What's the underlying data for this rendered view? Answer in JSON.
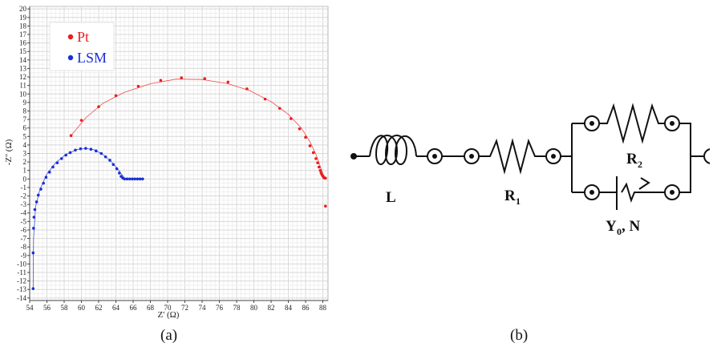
{
  "chart_data": {
    "type": "scatter",
    "title": "",
    "xlabel": "Z' (Ω)",
    "ylabel": "-Z'' (Ω)",
    "xlim": [
      54,
      88.6
    ],
    "ylim": [
      -14.3,
      20.3
    ],
    "x_ticks": [
      "54",
      "56",
      "58",
      "60",
      "62",
      "64",
      "66",
      "68",
      "70",
      "72",
      "74",
      "76",
      "78",
      "80",
      "82",
      "84",
      "86",
      "88"
    ],
    "x_tick_values": [
      54,
      56,
      58,
      60,
      62,
      64,
      66,
      68,
      70,
      72,
      74,
      76,
      78,
      80,
      82,
      84,
      86,
      88
    ],
    "y_tick_values": [
      -14,
      -13,
      -12,
      -11,
      -10,
      -9,
      -8,
      -7,
      -6,
      -5,
      -4,
      -3,
      -2,
      -1,
      0,
      1,
      2,
      3,
      4,
      5,
      6,
      7,
      8,
      9,
      10,
      11,
      12,
      13,
      14,
      15,
      16,
      17,
      18,
      19,
      20
    ],
    "grid": true,
    "legend": "top-left",
    "series": [
      {
        "name": "Pt",
        "color": "#ee1c1c",
        "points": [
          [
            58.8,
            5.1
          ],
          [
            60,
            6.9
          ],
          [
            62,
            8.5
          ],
          [
            64,
            9.8
          ],
          [
            66.6,
            10.9
          ],
          [
            69.2,
            11.6
          ],
          [
            71.6,
            11.9
          ],
          [
            74.3,
            11.8
          ],
          [
            77,
            11.4
          ],
          [
            79.2,
            10.6
          ],
          [
            81.3,
            9.4
          ],
          [
            83,
            8.3
          ],
          [
            84.3,
            7.1
          ],
          [
            85.3,
            5.9
          ],
          [
            86,
            4.9
          ],
          [
            86.5,
            3.9
          ],
          [
            86.9,
            3.1
          ],
          [
            87.2,
            2.4
          ],
          [
            87.4,
            1.9
          ],
          [
            87.55,
            1.4
          ],
          [
            87.7,
            1.0
          ],
          [
            87.8,
            0.7
          ],
          [
            87.9,
            0.5
          ],
          [
            88.0,
            0.35
          ],
          [
            88.05,
            0.25
          ],
          [
            88.1,
            0.18
          ],
          [
            88.15,
            0.14
          ],
          [
            88.2,
            0.12
          ],
          [
            88.25,
            0.1
          ],
          [
            88.3,
            0.1
          ],
          [
            88.3,
            -3.2
          ]
        ],
        "fit": [
          [
            58.8,
            5.1
          ],
          [
            60.5,
            7.2
          ],
          [
            62.5,
            8.9
          ],
          [
            65,
            10.2
          ],
          [
            68,
            11.2
          ],
          [
            71,
            11.75
          ],
          [
            74,
            11.7
          ],
          [
            77,
            11.2
          ],
          [
            79.5,
            10.4
          ],
          [
            82,
            9.1
          ],
          [
            84,
            7.6
          ],
          [
            85.5,
            6.0
          ],
          [
            86.5,
            4.4
          ],
          [
            87.2,
            2.9
          ],
          [
            87.7,
            1.5
          ],
          [
            88,
            0.6
          ],
          [
            88.2,
            0.15
          ],
          [
            88.3,
            0.05
          ]
        ]
      },
      {
        "name": "LSM",
        "color": "#1c2fd6",
        "points": [
          [
            54.4,
            -12.9
          ],
          [
            54.4,
            -8.7
          ],
          [
            54.45,
            -5.8
          ],
          [
            54.5,
            -4.5
          ],
          [
            54.6,
            -3.6
          ],
          [
            54.8,
            -2.7
          ],
          [
            55.0,
            -1.9
          ],
          [
            55.3,
            -1.2
          ],
          [
            55.6,
            -0.5
          ],
          [
            55.9,
            0.2
          ],
          [
            56.3,
            0.8
          ],
          [
            56.7,
            1.4
          ],
          [
            57.2,
            1.9
          ],
          [
            57.7,
            2.4
          ],
          [
            58.2,
            2.8
          ],
          [
            58.7,
            3.1
          ],
          [
            59.3,
            3.4
          ],
          [
            59.9,
            3.55
          ],
          [
            60.5,
            3.6
          ],
          [
            61.1,
            3.5
          ],
          [
            61.7,
            3.3
          ],
          [
            62.3,
            3.0
          ],
          [
            62.8,
            2.6
          ],
          [
            63.3,
            2.2
          ],
          [
            63.7,
            1.7
          ],
          [
            64.1,
            1.2
          ],
          [
            64.4,
            0.7
          ],
          [
            64.6,
            0.3
          ],
          [
            64.8,
            0.1
          ],
          [
            65.0,
            0.0
          ],
          [
            65.3,
            0.0
          ],
          [
            65.6,
            0.0
          ],
          [
            65.9,
            0.0
          ],
          [
            66.2,
            0.0
          ],
          [
            66.5,
            0.0
          ],
          [
            66.8,
            0.0
          ],
          [
            67.1,
            0.0
          ]
        ],
        "fit": [
          [
            54.4,
            -12.9
          ],
          [
            54.45,
            -7
          ],
          [
            54.7,
            -3.2
          ],
          [
            55.2,
            -1.2
          ],
          [
            56,
            0.6
          ],
          [
            57,
            1.9
          ],
          [
            58.2,
            2.9
          ],
          [
            59.5,
            3.45
          ],
          [
            60.5,
            3.6
          ],
          [
            61.6,
            3.4
          ],
          [
            62.6,
            2.8
          ],
          [
            63.5,
            2.0
          ],
          [
            64.2,
            1.2
          ],
          [
            64.7,
            0.5
          ],
          [
            65.0,
            0.1
          ],
          [
            65.5,
            0.0
          ],
          [
            67.1,
            0.0
          ]
        ]
      }
    ]
  },
  "circuit": {
    "label_L": "L",
    "label_R1": "R",
    "sub_R1": "1",
    "label_R2": "R",
    "sub_R2": "2",
    "label_Y0": "Y",
    "sub_Y0": "0",
    "label_N": ", N"
  },
  "captions": {
    "a": "(a)",
    "b": "(b)"
  }
}
